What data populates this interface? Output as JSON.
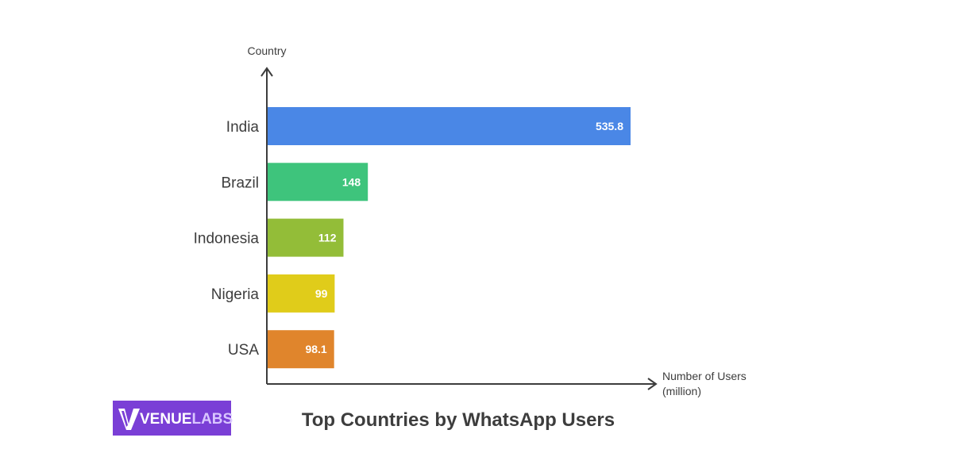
{
  "chart_data": {
    "type": "bar",
    "orientation": "horizontal",
    "title": "Top Countries by WhatsApp Users",
    "ylabel": "Country",
    "xlabel_lines": [
      "Number of Users",
      "(million)"
    ],
    "categories": [
      "India",
      "Brazil",
      "Indonesia",
      "Nigeria",
      "USA"
    ],
    "values": [
      535.8,
      148,
      112,
      99,
      98.1
    ],
    "value_labels": [
      "535.8",
      "148",
      "112",
      "99",
      "98.1"
    ],
    "colors": [
      "#4a87e6",
      "#3ec47c",
      "#93bd38",
      "#e0cc1a",
      "#e0852c"
    ],
    "grid": false,
    "legend": "none"
  },
  "branding": {
    "logo_lead": "VENUE",
    "logo_tail": "LABS",
    "logo_bg": "#7a3fd6",
    "logo_tail_color": "#d9c6ff"
  }
}
